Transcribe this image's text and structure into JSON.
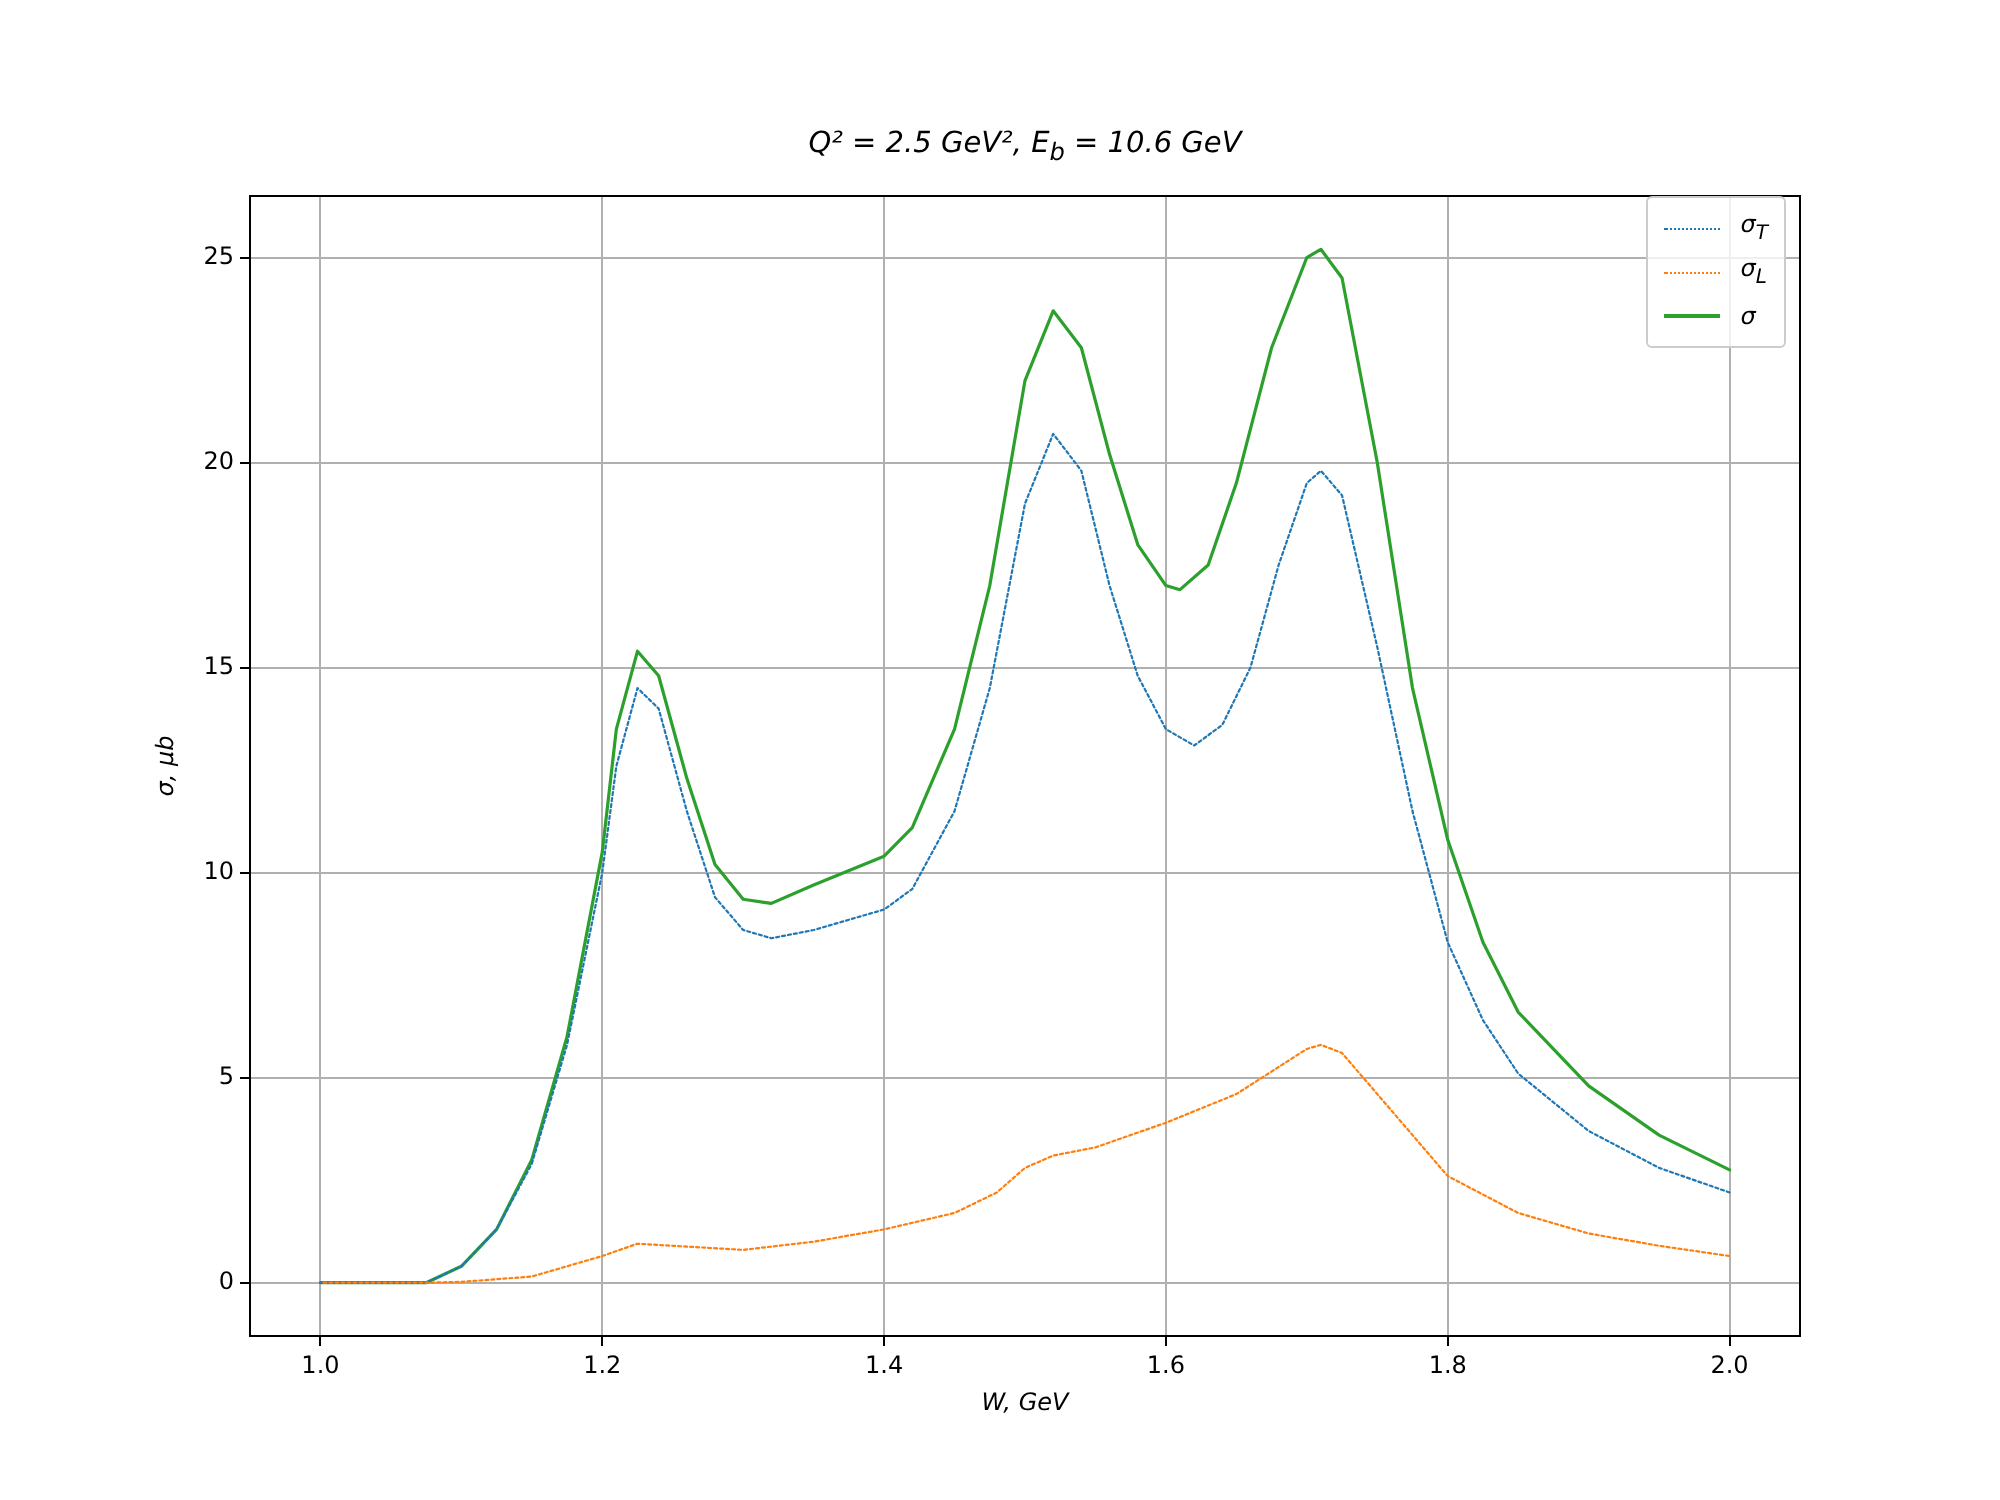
{
  "chart_data": {
    "type": "line",
    "title": "Q² = 2.5 GeV²,  E$_{b}$ = 10.6 GeV",
    "xlabel": "W, GeV",
    "ylabel": "σ, μb",
    "xlim": [
      0.95,
      2.05
    ],
    "ylim": [
      -1.3,
      26.5
    ],
    "xticks": [
      {
        "value": 1.0,
        "label": "1.0"
      },
      {
        "value": 1.2,
        "label": "1.2"
      },
      {
        "value": 1.4,
        "label": "1.4"
      },
      {
        "value": 1.6,
        "label": "1.6"
      },
      {
        "value": 1.8,
        "label": "1.8"
      },
      {
        "value": 2.0,
        "label": "2.0"
      }
    ],
    "yticks": [
      0,
      5,
      10,
      15,
      20,
      25
    ],
    "grid": true,
    "legend": "top right",
    "marker": "none",
    "series": [
      {
        "name": "σ$_{T}$",
        "color": "#1f77b4",
        "line_style": "dotted",
        "x": [
          1.0,
          1.075,
          1.1,
          1.125,
          1.15,
          1.175,
          1.2,
          1.21,
          1.225,
          1.24,
          1.26,
          1.28,
          1.3,
          1.32,
          1.35,
          1.4,
          1.42,
          1.45,
          1.475,
          1.5,
          1.52,
          1.54,
          1.56,
          1.58,
          1.6,
          1.62,
          1.64,
          1.66,
          1.68,
          1.7,
          1.71,
          1.725,
          1.75,
          1.775,
          1.8,
          1.825,
          1.85,
          1.9,
          1.95,
          2.0
        ],
        "values": [
          0,
          0,
          0.4,
          1.3,
          2.9,
          5.8,
          10.0,
          12.6,
          14.5,
          14.0,
          11.5,
          9.4,
          8.6,
          8.4,
          8.6,
          9.1,
          9.6,
          11.5,
          14.5,
          19.0,
          20.7,
          19.8,
          17.0,
          14.8,
          13.5,
          13.1,
          13.6,
          15.0,
          17.5,
          19.5,
          19.8,
          19.2,
          15.5,
          11.5,
          8.3,
          6.4,
          5.1,
          3.7,
          2.8,
          2.2
        ]
      },
      {
        "name": "σ$_{L}$",
        "color": "#ff7f0e",
        "line_style": "dotted",
        "x": [
          1.0,
          1.075,
          1.1,
          1.15,
          1.2,
          1.225,
          1.25,
          1.3,
          1.35,
          1.4,
          1.45,
          1.48,
          1.5,
          1.52,
          1.55,
          1.6,
          1.65,
          1.7,
          1.71,
          1.725,
          1.75,
          1.8,
          1.85,
          1.9,
          1.95,
          2.0
        ],
        "values": [
          0,
          0,
          0.02,
          0.15,
          0.65,
          0.95,
          0.9,
          0.8,
          1.0,
          1.3,
          1.7,
          2.2,
          2.8,
          3.1,
          3.3,
          3.9,
          4.6,
          5.7,
          5.8,
          5.6,
          4.6,
          2.6,
          1.7,
          1.2,
          0.9,
          0.65
        ]
      },
      {
        "name": "σ",
        "color": "#2ca02c",
        "line_style": "solid",
        "x": [
          1.0,
          1.075,
          1.1,
          1.125,
          1.15,
          1.175,
          1.2,
          1.21,
          1.225,
          1.24,
          1.26,
          1.28,
          1.3,
          1.32,
          1.35,
          1.4,
          1.42,
          1.45,
          1.475,
          1.5,
          1.52,
          1.54,
          1.56,
          1.58,
          1.6,
          1.61,
          1.63,
          1.65,
          1.675,
          1.7,
          1.71,
          1.725,
          1.75,
          1.775,
          1.8,
          1.825,
          1.85,
          1.9,
          1.95,
          2.0
        ],
        "values": [
          0,
          0,
          0.4,
          1.3,
          3.0,
          6.0,
          10.5,
          13.5,
          15.4,
          14.8,
          12.3,
          10.2,
          9.35,
          9.25,
          9.7,
          10.4,
          11.1,
          13.5,
          17,
          22.0,
          23.7,
          22.8,
          20.2,
          18.0,
          17.0,
          16.9,
          17.5,
          19.5,
          22.8,
          25.0,
          25.2,
          24.5,
          20.0,
          14.5,
          10.8,
          8.3,
          6.6,
          4.8,
          3.6,
          2.75
        ]
      }
    ]
  }
}
